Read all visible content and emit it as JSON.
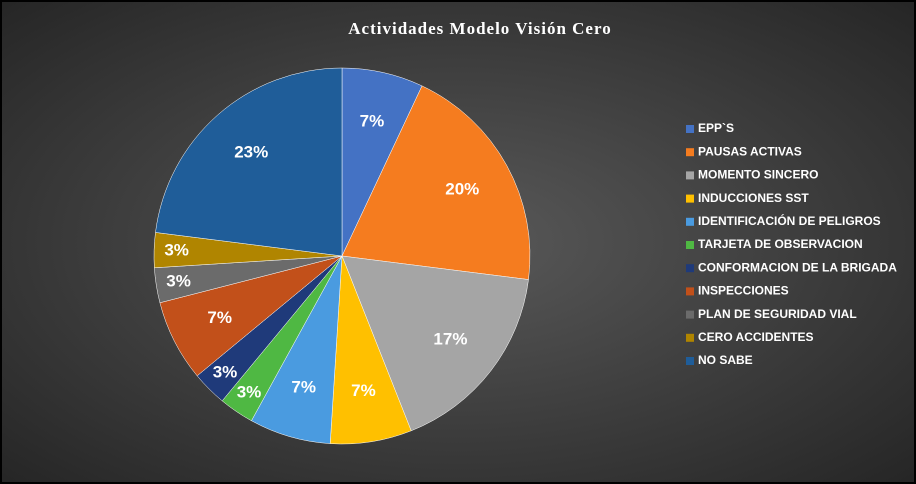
{
  "chart_data": {
    "type": "pie",
    "title": "Actividades Modelo Visión Cero",
    "categories": [
      "EPP`S",
      "PAUSAS ACTIVAS",
      "MOMENTO SINCERO",
      "INDUCCIONES SST",
      "IDENTIFICACIÓN DE PELIGROS",
      "TARJETA DE OBSERVACION",
      "CONFORMACION DE LA BRIGADA",
      "INSPECCIONES",
      "PLAN DE SEGURIDAD VIAL",
      "CERO ACCIDENTES",
      "NO SABE"
    ],
    "values": [
      7,
      20,
      17,
      7,
      7,
      3,
      3,
      7,
      3,
      3,
      23
    ],
    "value_labels": [
      "7%",
      "20%",
      "17%",
      "7%",
      "7%",
      "3%",
      "3%",
      "7%",
      "3%",
      "3%",
      "23%"
    ],
    "colors": [
      "#4472c4",
      "#f57c1f",
      "#a5a5a5",
      "#ffc000",
      "#4a9be0",
      "#4fb843",
      "#1f3a7a",
      "#c2501a",
      "#6b6b6b",
      "#b08500",
      "#1f5d99"
    ],
    "legend": "right"
  }
}
